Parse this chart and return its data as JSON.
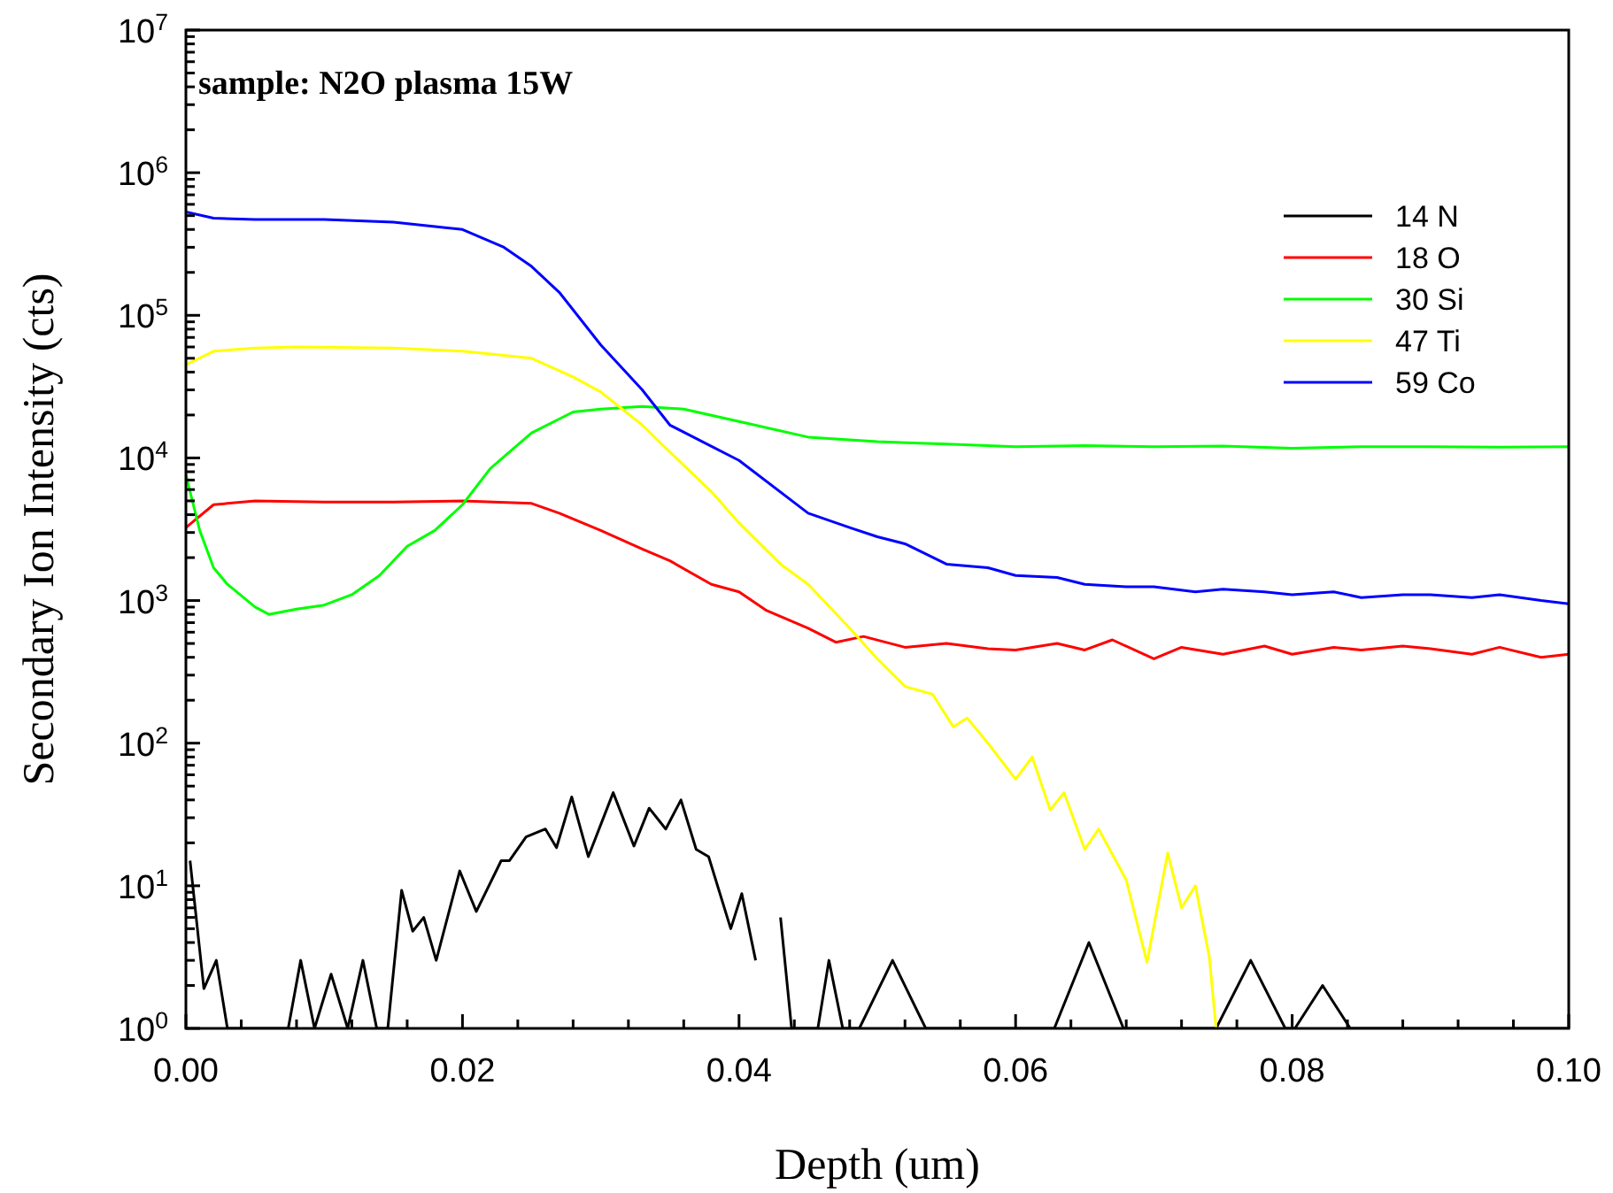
{
  "chart_data": {
    "type": "line",
    "xlabel": "Depth (um)",
    "ylabel": "Secondary Ion Intensity (cts)",
    "annotations": [
      "sample: N2O plasma 15W"
    ],
    "log": "y",
    "legend": "top right",
    "grid": false,
    "xlim": [
      0,
      0.1
    ],
    "ylim": [
      1,
      10000000
    ],
    "xticks": [
      {
        "value": 0,
        "label": "0.00"
      },
      {
        "value": 0.004,
        "label": null
      },
      {
        "value": 0.008,
        "label": null
      },
      {
        "value": 0.012,
        "label": null
      },
      {
        "value": 0.016,
        "label": null
      },
      {
        "value": 0.02,
        "label": "0.02"
      },
      {
        "value": 0.024,
        "label": null
      },
      {
        "value": 0.028,
        "label": null
      },
      {
        "value": 0.032,
        "label": null
      },
      {
        "value": 0.036,
        "label": null
      },
      {
        "value": 0.04,
        "label": "0.04"
      },
      {
        "value": 0.044,
        "label": null
      },
      {
        "value": 0.048,
        "label": null
      },
      {
        "value": 0.052,
        "label": null
      },
      {
        "value": 0.056,
        "label": null
      },
      {
        "value": 0.06,
        "label": "0.06"
      },
      {
        "value": 0.064,
        "label": null
      },
      {
        "value": 0.068,
        "label": null
      },
      {
        "value": 0.072,
        "label": null
      },
      {
        "value": 0.076,
        "label": null
      },
      {
        "value": 0.08,
        "label": "0.08"
      },
      {
        "value": 0.084,
        "label": null
      },
      {
        "value": 0.088,
        "label": null
      },
      {
        "value": 0.092,
        "label": null
      },
      {
        "value": 0.096,
        "label": null
      },
      {
        "value": 0.1,
        "label": "0.10"
      }
    ],
    "yticks": [
      {
        "value": 1,
        "label": "10$^{0}$"
      },
      {
        "value": 2,
        "label": null
      },
      {
        "value": 3,
        "label": null
      },
      {
        "value": 4,
        "label": null
      },
      {
        "value": 5,
        "label": null
      },
      {
        "value": 6,
        "label": null
      },
      {
        "value": 7,
        "label": null
      },
      {
        "value": 8,
        "label": null
      },
      {
        "value": 9,
        "label": null
      },
      {
        "value": 10,
        "label": "10$^{1}$"
      },
      {
        "value": 20,
        "label": null
      },
      {
        "value": 30,
        "label": null
      },
      {
        "value": 40,
        "label": null
      },
      {
        "value": 50,
        "label": null
      },
      {
        "value": 60,
        "label": null
      },
      {
        "value": 70,
        "label": null
      },
      {
        "value": 80,
        "label": null
      },
      {
        "value": 90,
        "label": null
      },
      {
        "value": 100,
        "label": "10$^{2}$"
      },
      {
        "value": 200,
        "label": null
      },
      {
        "value": 300,
        "label": null
      },
      {
        "value": 400,
        "label": null
      },
      {
        "value": 500,
        "label": null
      },
      {
        "value": 600,
        "label": null
      },
      {
        "value": 700,
        "label": null
      },
      {
        "value": 800,
        "label": null
      },
      {
        "value": 900,
        "label": null
      },
      {
        "value": 1000,
        "label": "10$^{3}$"
      },
      {
        "value": 2000,
        "label": null
      },
      {
        "value": 3000,
        "label": null
      },
      {
        "value": 4000,
        "label": null
      },
      {
        "value": 5000,
        "label": null
      },
      {
        "value": 6000,
        "label": null
      },
      {
        "value": 7000,
        "label": null
      },
      {
        "value": 8000,
        "label": null
      },
      {
        "value": 9000,
        "label": null
      },
      {
        "value": 10000,
        "label": "10$^{4}$"
      },
      {
        "value": 20000,
        "label": null
      },
      {
        "value": 30000,
        "label": null
      },
      {
        "value": 40000,
        "label": null
      },
      {
        "value": 50000,
        "label": null
      },
      {
        "value": 60000,
        "label": null
      },
      {
        "value": 70000,
        "label": null
      },
      {
        "value": 80000,
        "label": null
      },
      {
        "value": 90000,
        "label": null
      },
      {
        "value": 100000,
        "label": "10$^{5}$"
      },
      {
        "value": 200000,
        "label": null
      },
      {
        "value": 300000,
        "label": null
      },
      {
        "value": 400000,
        "label": null
      },
      {
        "value": 500000,
        "label": null
      },
      {
        "value": 600000,
        "label": null
      },
      {
        "value": 700000,
        "label": null
      },
      {
        "value": 800000,
        "label": null
      },
      {
        "value": 900000,
        "label": null
      },
      {
        "value": 1000000,
        "label": "10$^{6}$"
      },
      {
        "value": 2000000,
        "label": null
      },
      {
        "value": 3000000,
        "label": null
      },
      {
        "value": 4000000,
        "label": null
      },
      {
        "value": 5000000,
        "label": null
      },
      {
        "value": 6000000,
        "label": null
      },
      {
        "value": 7000000,
        "label": null
      },
      {
        "value": 8000000,
        "label": null
      },
      {
        "value": 9000000,
        "label": null
      },
      {
        "value": 10000000,
        "label": "10$^{7}$"
      }
    ],
    "series": [
      {
        "name": "14 N",
        "color": "#000000",
        "x": [
          0.0003,
          0.0013,
          0.0022,
          0.003,
          0.0074,
          0.0083,
          0.0093,
          0.0105,
          0.0117,
          0.0128,
          0.0138,
          0.0146,
          0.0156,
          0.0164,
          0.0172,
          0.0181,
          0.0198,
          0.021,
          0.0228,
          0.0234,
          0.0246,
          0.026,
          0.0268,
          0.0279,
          0.0291,
          0.0309,
          0.0324,
          0.0335,
          0.0347,
          0.0358,
          0.0369,
          0.0378,
          0.0394,
          0.0402,
          0.0412,
          0.042,
          0.043,
          0.0438,
          0.0457,
          0.0465,
          0.0475,
          0.0487,
          0.0511,
          0.0535,
          0.0628,
          0.0653,
          0.0678,
          0.0745,
          0.077,
          0.0795,
          0.0802,
          0.0822,
          0.0842,
          0.1
        ],
        "values": [
          15,
          1.9,
          3,
          1,
          1,
          3,
          1,
          2.4,
          1,
          3,
          1,
          1,
          9.3,
          4.8,
          6,
          3,
          12.7,
          6.6,
          15,
          15,
          22,
          25,
          18.5,
          42,
          16,
          45,
          19,
          35,
          25,
          40,
          18,
          16,
          5,
          8.8,
          3,
          null,
          6,
          1,
          1,
          3,
          1,
          1,
          3,
          1,
          1,
          4,
          1,
          1,
          3,
          1,
          1,
          2,
          1,
          1
        ]
      },
      {
        "name": "18 O",
        "color": "#ff0000",
        "x": [
          0,
          0.002,
          0.005,
          0.01,
          0.015,
          0.02,
          0.025,
          0.027,
          0.03,
          0.033,
          0.035,
          0.038,
          0.04,
          0.042,
          0.045,
          0.047,
          0.049,
          0.052,
          0.055,
          0.058,
          0.06,
          0.063,
          0.065,
          0.067,
          0.07,
          0.072,
          0.075,
          0.078,
          0.08,
          0.083,
          0.085,
          0.088,
          0.09,
          0.093,
          0.095,
          0.098,
          0.1
        ],
        "values": [
          3250,
          4700,
          5000,
          4900,
          4900,
          5000,
          4800,
          4100,
          3100,
          2300,
          1900,
          1300,
          1150,
          850,
          640,
          510,
          560,
          470,
          500,
          460,
          450,
          500,
          450,
          530,
          390,
          470,
          420,
          480,
          420,
          470,
          450,
          480,
          460,
          420,
          470,
          400,
          420
        ]
      },
      {
        "name": "30 Si",
        "color": "#00ff00",
        "x": [
          0,
          0.001,
          0.002,
          0.003,
          0.005,
          0.006,
          0.008,
          0.01,
          0.012,
          0.014,
          0.016,
          0.018,
          0.02,
          0.022,
          0.025,
          0.028,
          0.03,
          0.033,
          0.036,
          0.04,
          0.045,
          0.05,
          0.055,
          0.06,
          0.065,
          0.07,
          0.075,
          0.08,
          0.085,
          0.09,
          0.095,
          0.1
        ],
        "values": [
          7600,
          3100,
          1700,
          1300,
          900,
          800,
          870,
          930,
          1100,
          1500,
          2400,
          3100,
          4700,
          8400,
          15000,
          21000,
          22000,
          23000,
          22000,
          18000,
          14000,
          13000,
          12500,
          12000,
          12200,
          12000,
          12100,
          11700,
          12000,
          12000,
          11900,
          12000
        ]
      },
      {
        "name": "47 Ti",
        "color": "#ffff00",
        "x": [
          0,
          0.002,
          0.005,
          0.008,
          0.015,
          0.02,
          0.025,
          0.028,
          0.03,
          0.033,
          0.035,
          0.038,
          0.04,
          0.043,
          0.045,
          0.048,
          0.05,
          0.052,
          0.054,
          0.0555,
          0.0565,
          0.058,
          0.06,
          0.0612,
          0.0625,
          0.0635,
          0.065,
          0.066,
          0.068,
          0.0695,
          0.071,
          0.072,
          0.073,
          0.074,
          0.0745
        ],
        "values": [
          45000,
          56000,
          59000,
          60000,
          59000,
          56000,
          50000,
          37000,
          29000,
          17000,
          11000,
          5800,
          3500,
          1800,
          1300,
          640,
          390,
          250,
          220,
          130,
          150,
          100,
          56,
          80,
          34,
          45,
          18,
          25,
          11,
          2.9,
          17,
          7,
          10,
          3.2,
          1
        ]
      },
      {
        "name": "59 Co",
        "color": "#0000ff",
        "x": [
          0,
          0.002,
          0.005,
          0.01,
          0.015,
          0.02,
          0.023,
          0.025,
          0.027,
          0.03,
          0.033,
          0.035,
          0.04,
          0.045,
          0.048,
          0.05,
          0.052,
          0.055,
          0.058,
          0.06,
          0.063,
          0.065,
          0.068,
          0.07,
          0.073,
          0.075,
          0.078,
          0.08,
          0.083,
          0.085,
          0.088,
          0.09,
          0.093,
          0.095,
          0.098,
          0.1
        ],
        "values": [
          530000,
          480000,
          470000,
          470000,
          450000,
          400000,
          300000,
          220000,
          145000,
          62000,
          30000,
          17000,
          9600,
          4100,
          3250,
          2800,
          2500,
          1800,
          1700,
          1500,
          1450,
          1300,
          1250,
          1250,
          1150,
          1200,
          1150,
          1100,
          1150,
          1050,
          1100,
          1100,
          1050,
          1100,
          1000,
          950
        ]
      }
    ]
  }
}
